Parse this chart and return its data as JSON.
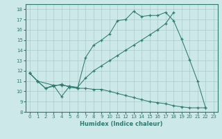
{
  "xlabel": "Humidex (Indice chaleur)",
  "background_color": "#cde8e8",
  "grid_color": "#aacccc",
  "line_color": "#2d7a6e",
  "xlim": [
    -0.5,
    23.5
  ],
  "ylim": [
    8,
    18.5
  ],
  "xticks": [
    0,
    1,
    2,
    3,
    4,
    5,
    6,
    7,
    8,
    9,
    10,
    11,
    12,
    13,
    14,
    15,
    16,
    17,
    18,
    19,
    20,
    21,
    22,
    23
  ],
  "yticks": [
    8,
    9,
    10,
    11,
    12,
    13,
    14,
    15,
    16,
    17,
    18
  ],
  "line1_x": [
    0,
    1,
    2,
    3,
    4,
    5,
    6,
    7,
    8,
    9,
    10,
    11,
    12,
    13,
    14,
    15,
    16,
    17,
    18,
    19,
    20,
    21,
    22
  ],
  "line1_y": [
    11.8,
    11.0,
    10.3,
    10.6,
    9.5,
    10.5,
    10.3,
    13.3,
    14.5,
    15.0,
    15.6,
    16.9,
    17.0,
    17.8,
    17.3,
    17.4,
    17.4,
    17.7,
    16.9,
    15.1,
    13.1,
    11.0,
    8.4
  ],
  "line2_x": [
    0,
    1,
    3,
    4,
    5,
    6,
    7,
    8,
    9,
    10,
    11,
    12,
    13,
    14,
    15,
    16,
    17,
    18
  ],
  "line2_y": [
    11.8,
    11.0,
    10.6,
    10.6,
    10.5,
    10.4,
    11.3,
    12.0,
    12.5,
    13.0,
    13.5,
    14.0,
    14.5,
    15.0,
    15.5,
    16.0,
    16.6,
    17.7
  ],
  "line3_x": [
    0,
    1,
    2,
    3,
    4,
    5,
    6,
    7,
    8,
    9,
    10,
    11,
    12,
    13,
    14,
    15,
    16,
    17,
    18,
    19,
    20,
    21,
    22
  ],
  "line3_y": [
    11.8,
    11.0,
    10.3,
    10.5,
    10.7,
    10.4,
    10.3,
    10.3,
    10.2,
    10.2,
    10.0,
    9.8,
    9.6,
    9.4,
    9.2,
    9.0,
    8.9,
    8.8,
    8.6,
    8.5,
    8.4,
    8.4,
    8.4
  ]
}
